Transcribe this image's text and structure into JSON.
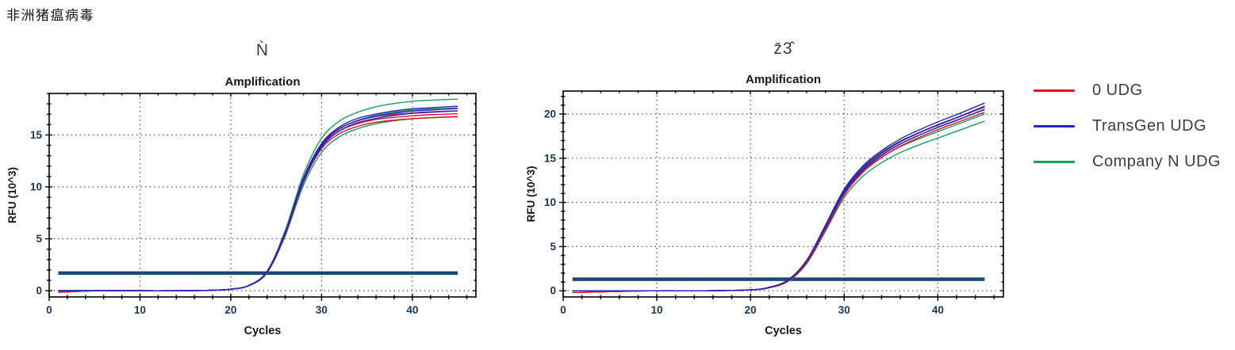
{
  "page_title": "非洲猪瘟病毒",
  "colors": {
    "red": "#e31220",
    "blue": "#2424c8",
    "green": "#14a05a",
    "threshold": "#17497c",
    "tick_label": "#17365d",
    "axis_text": "#101820",
    "subtitle_text": "#3c3c3c",
    "grid": "#4a4a4a",
    "box": "#000000"
  },
  "legend": {
    "items": [
      {
        "label": "0 UDG",
        "color_key": "red"
      },
      {
        "label": "TransGen UDG",
        "color_key": "blue"
      },
      {
        "label": "Company N UDG",
        "color_key": "green"
      }
    ]
  },
  "chart_data": [
    {
      "type": "line",
      "subtitle": "Ǹ",
      "title": "Amplification",
      "xlabel": "Cycles",
      "ylabel": "RFU (10^3)",
      "xlim": [
        0,
        47
      ],
      "ylim": [
        -0.6,
        19.0
      ],
      "xticks": [
        0,
        10,
        20,
        30,
        40
      ],
      "yticks": [
        0,
        5,
        10,
        15
      ],
      "x_minor_step": 2,
      "y_minor_step": 1,
      "grid": "dotted",
      "threshold": {
        "y": 1.7,
        "x_start": 1,
        "x_end": 45
      },
      "x": [
        1,
        5,
        10,
        15,
        18,
        20,
        22,
        24,
        26,
        28,
        30,
        32,
        34,
        36,
        38,
        40,
        42,
        45
      ],
      "series": [
        {
          "name": "Company N UDG",
          "color_key": "green",
          "replicates": 3,
          "spread": 0.85,
          "values": [
            0,
            0,
            0,
            0,
            0.05,
            0.15,
            0.5,
            1.8,
            5.55,
            10.65,
            14.0,
            15.6,
            16.4,
            16.9,
            17.2,
            17.4,
            17.5,
            17.6
          ]
        },
        {
          "name": "0 UDG",
          "color_key": "red",
          "replicates": 3,
          "spread": 0.28,
          "values": [
            -0.15,
            0,
            0,
            0,
            0.05,
            0.15,
            0.5,
            1.8,
            5.5,
            10.6,
            13.9,
            15.4,
            16.1,
            16.5,
            16.7,
            16.85,
            16.95,
            17.05
          ]
        },
        {
          "name": "TransGen UDG",
          "color_key": "blue",
          "replicates": 3,
          "spread": 0.22,
          "values": [
            0,
            0,
            0,
            0,
            0.05,
            0.15,
            0.5,
            1.85,
            5.6,
            10.7,
            14.0,
            15.6,
            16.4,
            16.8,
            17.1,
            17.3,
            17.4,
            17.55
          ]
        }
      ]
    },
    {
      "type": "line",
      "subtitle": "z̄3̂",
      "title": "Amplification",
      "xlabel": "Cycles",
      "ylabel": "RFU (10^3)",
      "xlim": [
        0,
        47
      ],
      "ylim": [
        -0.7,
        22.6
      ],
      "xticks": [
        0,
        10,
        20,
        30,
        40
      ],
      "yticks": [
        0,
        5,
        10,
        15,
        20
      ],
      "x_minor_step": 2,
      "y_minor_step": 1,
      "grid": "dotted",
      "threshold": {
        "y": 1.3,
        "x_start": 1,
        "x_end": 45
      },
      "x": [
        1,
        5,
        10,
        15,
        20,
        22,
        24,
        26,
        28,
        30,
        32,
        34,
        36,
        38,
        40,
        42,
        45
      ],
      "series": [
        {
          "name": "Company N UDG",
          "color_key": "green",
          "replicates": 3,
          "spread": 0.8,
          "values": [
            0,
            0,
            0,
            0,
            0.1,
            0.35,
            1.1,
            3.2,
            7.0,
            11.0,
            13.5,
            15.1,
            16.3,
            17.2,
            18.0,
            18.8,
            20.0
          ]
        },
        {
          "name": "0 UDG",
          "color_key": "red",
          "replicates": 3,
          "spread": 0.3,
          "values": [
            -0.2,
            -0.1,
            0,
            0,
            0.1,
            0.35,
            1.1,
            3.2,
            7.0,
            11.0,
            13.6,
            15.3,
            16.6,
            17.6,
            18.5,
            19.3,
            20.5
          ]
        },
        {
          "name": "TransGen UDG",
          "color_key": "blue",
          "replicates": 3,
          "spread": 0.35,
          "values": [
            0,
            0,
            0,
            0,
            0.1,
            0.4,
            1.2,
            3.4,
            7.3,
            11.3,
            13.9,
            15.6,
            16.9,
            17.9,
            18.8,
            19.6,
            20.9
          ]
        }
      ]
    }
  ]
}
